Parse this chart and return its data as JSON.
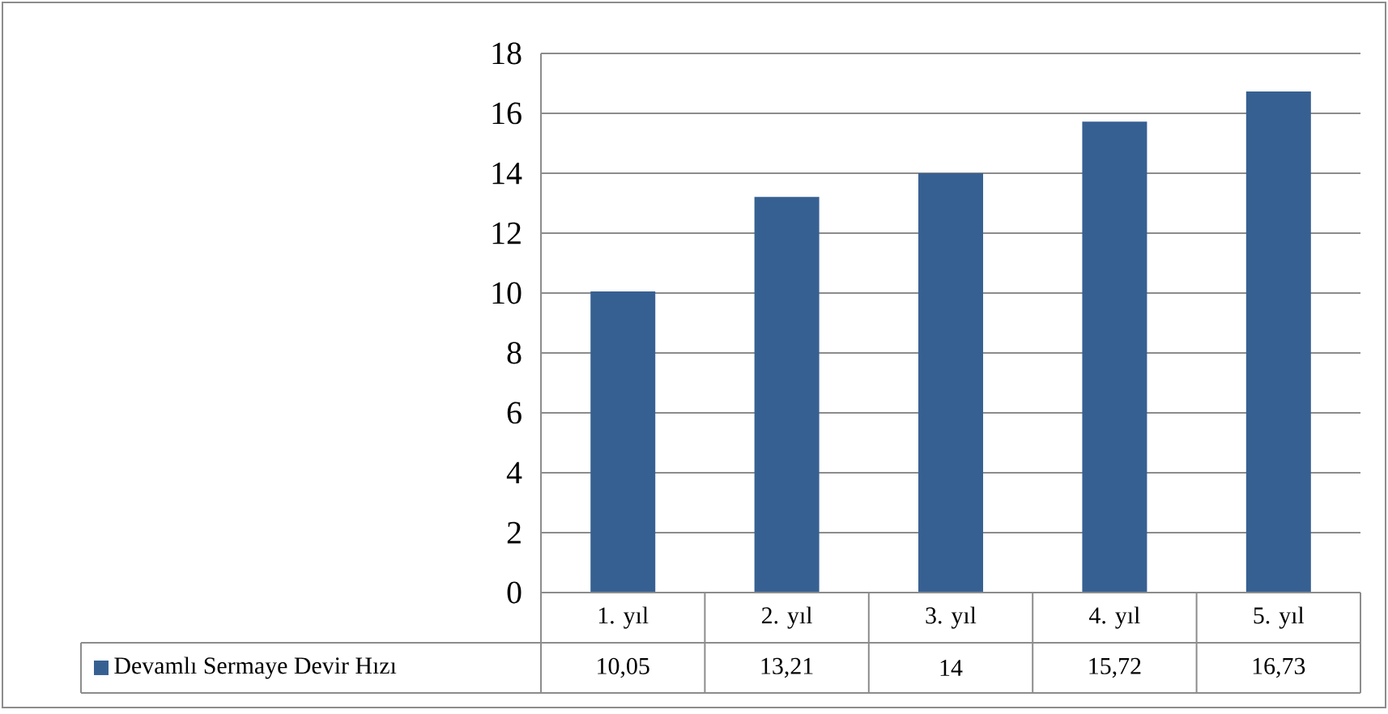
{
  "chart_data": {
    "type": "bar",
    "categories": [
      "1. yıl",
      "2. yıl",
      "3. yıl",
      "4. yıl",
      "5. yıl"
    ],
    "series": [
      {
        "name": "Devamlı Sermaye Devir Hızı",
        "color": "#376092",
        "values": [
          10.05,
          13.21,
          14,
          15.72,
          16.73
        ],
        "value_labels": [
          "10,05",
          "13,21",
          "14",
          "15,72",
          "16,73"
        ]
      }
    ],
    "ylim": [
      0,
      18
    ],
    "yticks": [
      0,
      2,
      4,
      6,
      8,
      10,
      12,
      14,
      16,
      18
    ],
    "grid": "y"
  }
}
